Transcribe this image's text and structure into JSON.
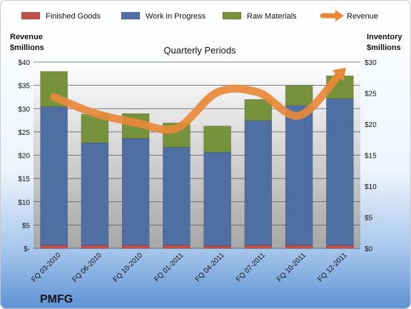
{
  "chart_data": {
    "type": "bar",
    "subtype": "stacked-bar-with-line",
    "plot_title": "Quarterly Periods",
    "brand": "PMFG",
    "categories": [
      "FQ 03-2010",
      "FQ 06-2010",
      "FQ 10-2010",
      "FQ 01-2011",
      "FQ 04-2011",
      "FQ 07-2011",
      "FQ 10-2011",
      "FQ 12-2011"
    ],
    "left_axis": {
      "title_line1": "Revenue",
      "title_line2": "$millions",
      "ylim": [
        0,
        40
      ],
      "ticks": [
        "$-",
        "$5",
        "$10",
        "$15",
        "$20",
        "$25",
        "$30",
        "$35",
        "$40"
      ]
    },
    "right_axis": {
      "title_line1": "Inventory",
      "title_line2": "$millions",
      "ylim": [
        0,
        30
      ],
      "ticks": [
        "$0",
        "$5",
        "$10",
        "$15",
        "$20",
        "$25",
        "$30"
      ]
    },
    "series": [
      {
        "name": "Finished Goods",
        "axis": "right",
        "kind": "bar",
        "color": "#c0504d",
        "values": [
          0.5,
          0.5,
          0.5,
          0.5,
          0.4,
          0.5,
          0.5,
          0.5
        ]
      },
      {
        "name": "Work in Progress",
        "axis": "right",
        "kind": "bar",
        "color": "#4f6fa3",
        "values": [
          22.3,
          16.5,
          17.2,
          15.8,
          15.1,
          20.1,
          22.5,
          23.6
        ]
      },
      {
        "name": "Raw Materials",
        "axis": "right",
        "kind": "bar",
        "color": "#76923c",
        "values": [
          5.7,
          4.6,
          4.0,
          3.9,
          4.2,
          3.4,
          3.2,
          3.7
        ]
      },
      {
        "name": "Revenue",
        "axis": "left",
        "kind": "line",
        "color": "#e8893a",
        "values": [
          32.5,
          29.0,
          27.0,
          25.8,
          33.5,
          33.5,
          28.5,
          37.5
        ]
      }
    ],
    "grid": true,
    "legend_position": "top"
  }
}
